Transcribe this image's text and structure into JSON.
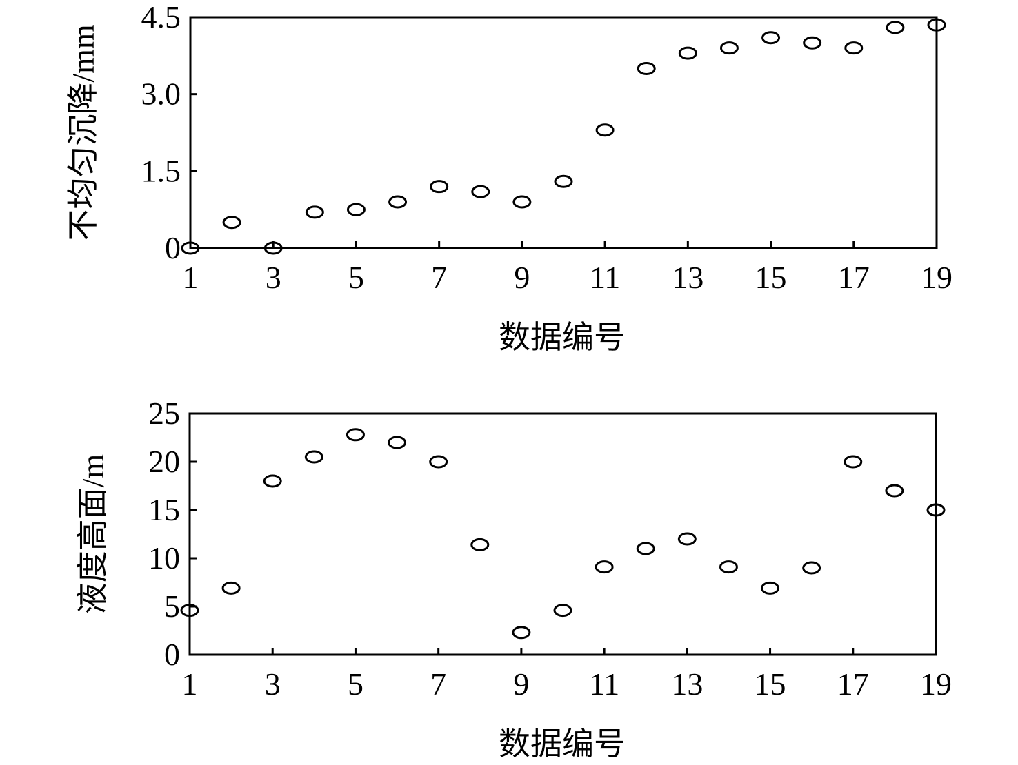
{
  "chart_data": [
    {
      "type": "scatter",
      "xlabel": "数据编号",
      "ylabel": "不均匀沉降/mm",
      "x": [
        1,
        2,
        3,
        4,
        5,
        6,
        7,
        8,
        9,
        10,
        11,
        12,
        13,
        14,
        15,
        16,
        17,
        18,
        19
      ],
      "values": [
        0,
        0.5,
        0,
        0.7,
        0.75,
        0.9,
        1.2,
        1.1,
        0.9,
        1.3,
        2.3,
        3.5,
        3.8,
        3.9,
        4.1,
        4.0,
        3.9,
        4.3,
        4.35
      ],
      "color": "#000000",
      "xlim": [
        1,
        19
      ],
      "xticks": [
        1,
        3,
        5,
        7,
        9,
        11,
        13,
        15,
        17,
        19
      ],
      "ylim": [
        0,
        4.5
      ],
      "yticks": [
        0,
        1.5,
        {
          "value": 3,
          "label": "3.0"
        },
        4.5
      ]
    },
    {
      "type": "scatter",
      "xlabel": "数据编号",
      "ylabel": "液度高面/m",
      "x": [
        1,
        2,
        3,
        4,
        5,
        6,
        7,
        8,
        9,
        10,
        11,
        12,
        13,
        14,
        15,
        16,
        17,
        18,
        19
      ],
      "values": [
        4.6,
        6.9,
        18,
        20.5,
        22.8,
        22,
        20,
        11.4,
        2.3,
        4.6,
        9.1,
        11,
        12,
        9.1,
        6.9,
        9,
        20,
        17,
        15
      ],
      "color": "#000000",
      "xlim": [
        1,
        19
      ],
      "xticks": [
        1,
        3,
        5,
        7,
        9,
        11,
        13,
        15,
        17,
        19
      ],
      "ylim": [
        0,
        25
      ],
      "yticks": [
        0,
        5,
        10,
        15,
        20,
        25
      ]
    }
  ]
}
